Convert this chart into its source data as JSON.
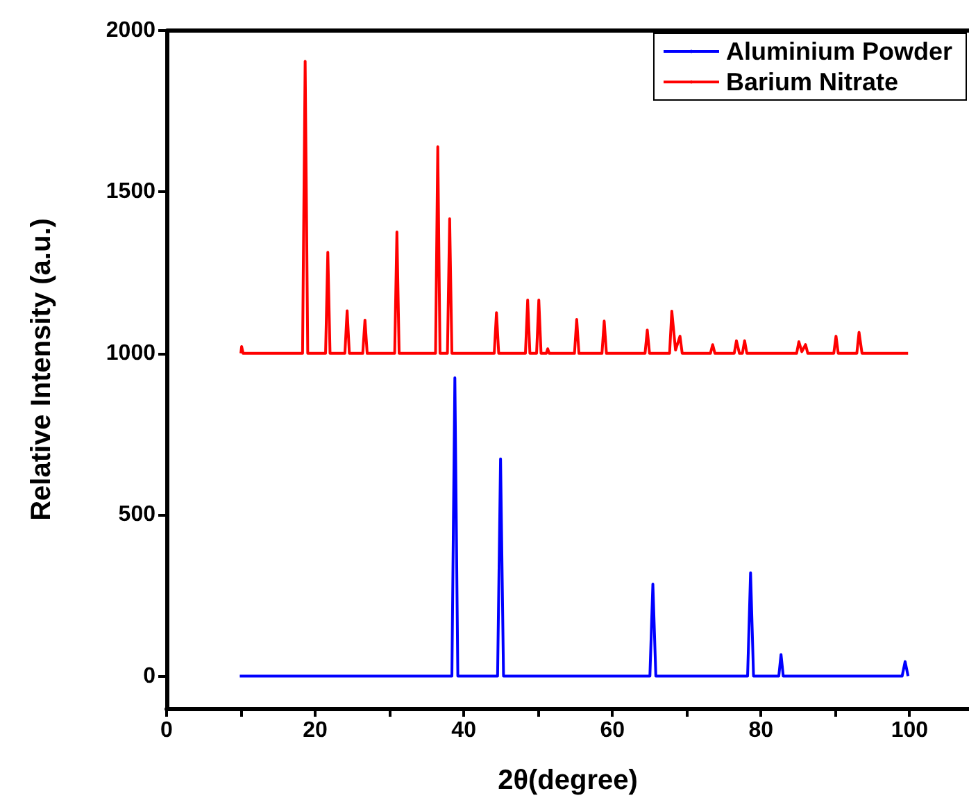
{
  "chart_data": {
    "type": "line",
    "xlabel": "2θ(degree)",
    "ylabel": "Relative Intensity (a.u.)",
    "xlim": [
      0,
      108
    ],
    "xticks": [
      0,
      {
        "value": 10,
        "label": null
      },
      20,
      {
        "value": 30,
        "label": null
      },
      40,
      {
        "value": 50,
        "label": null
      },
      60,
      {
        "value": 70,
        "label": null
      },
      80,
      {
        "value": 90,
        "label": null
      },
      100
    ],
    "ylim": [
      -100,
      2000
    ],
    "yticks": [
      0,
      500,
      1000,
      1500,
      2000
    ],
    "grid": false,
    "legend": "top right",
    "marker": "none",
    "line_style": "solid",
    "series": [
      {
        "name": "Aluminium Powder",
        "color": "#0000ff",
        "x": [
          9.85,
          38.4,
          38.8,
          39.2,
          44.55,
          44.95,
          45.35,
          65.05,
          65.45,
          65.85,
          78.2,
          78.6,
          79.0,
          82.4,
          82.7,
          83.0,
          99.0,
          99.4,
          99.8
        ],
        "values": [
          0,
          0,
          924,
          0,
          0,
          673,
          0,
          0,
          285,
          0,
          0,
          320,
          0,
          0,
          67,
          0,
          0,
          45,
          0
        ]
      },
      {
        "name": "Barium Nitrate",
        "color": "#ff0000",
        "x": [
          10.0,
          10.1,
          10.3,
          18.3,
          18.65,
          19.0,
          21.4,
          21.7,
          22.0,
          24.0,
          24.3,
          24.6,
          26.4,
          26.7,
          27.0,
          30.7,
          31.0,
          31.3,
          36.2,
          36.5,
          36.8,
          37.8,
          38.1,
          38.4,
          44.1,
          44.4,
          44.7,
          48.3,
          48.6,
          48.9,
          49.8,
          50.1,
          50.4,
          51.1,
          51.3,
          51.5,
          54.9,
          55.2,
          55.5,
          58.6,
          58.9,
          59.2,
          64.4,
          64.7,
          65.0,
          67.7,
          68.0,
          68.5,
          69.1,
          69.4,
          73.2,
          73.5,
          73.8,
          76.4,
          76.7,
          77.1,
          77.5,
          77.8,
          78.1,
          84.8,
          85.1,
          85.5,
          86.0,
          86.3,
          89.8,
          90.1,
          90.4,
          92.9,
          93.2,
          93.6,
          99.8
        ],
        "values": [
          1000,
          1021,
          1000,
          1000,
          1905,
          1000,
          1000,
          1313,
          1000,
          1000,
          1132,
          1000,
          1000,
          1103,
          1000,
          1000,
          1376,
          1000,
          1000,
          1640,
          1000,
          1000,
          1417,
          1000,
          1000,
          1126,
          1000,
          1000,
          1165,
          1000,
          1000,
          1165,
          1000,
          1000,
          1014,
          1000,
          1000,
          1105,
          1000,
          1000,
          1100,
          1000,
          1000,
          1072,
          1000,
          1000,
          1131,
          1010,
          1053,
          1000,
          1000,
          1027,
          1000,
          1000,
          1039,
          1000,
          1000,
          1039,
          1000,
          1000,
          1036,
          1005,
          1027,
          1000,
          1000,
          1053,
          1000,
          1000,
          1065,
          1000,
          1000
        ]
      }
    ]
  }
}
